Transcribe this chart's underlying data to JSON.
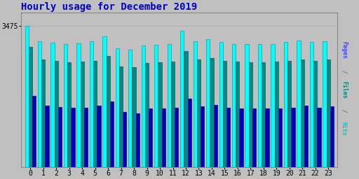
{
  "title": "Hourly usage for December 2019",
  "background_color": "#c0c0c0",
  "hours": [
    0,
    1,
    2,
    3,
    4,
    5,
    6,
    7,
    8,
    9,
    10,
    11,
    12,
    13,
    14,
    15,
    16,
    17,
    18,
    19,
    20,
    21,
    22,
    23
  ],
  "hits": [
    3475,
    3100,
    3060,
    3030,
    3050,
    3090,
    3210,
    2920,
    2880,
    2990,
    3010,
    3030,
    3350,
    3090,
    3140,
    3070,
    3030,
    3020,
    3020,
    3030,
    3070,
    3110,
    3070,
    3090
  ],
  "files": [
    2950,
    2650,
    2610,
    2580,
    2590,
    2620,
    2740,
    2480,
    2450,
    2560,
    2580,
    2600,
    2860,
    2640,
    2680,
    2620,
    2590,
    2580,
    2580,
    2590,
    2620,
    2650,
    2620,
    2640
  ],
  "pages": [
    1750,
    1520,
    1480,
    1460,
    1470,
    1510,
    1620,
    1360,
    1330,
    1440,
    1450,
    1470,
    1690,
    1500,
    1530,
    1470,
    1450,
    1440,
    1440,
    1450,
    1470,
    1510,
    1470,
    1490
  ],
  "hits_color": "#00ffff",
  "files_color": "#008b8b",
  "pages_color": "#0000bb",
  "title_color": "#0000cc",
  "title_fontsize": 10,
  "tick_fontsize": 7,
  "ymax": 3800,
  "ytick_val": 3475,
  "ylabel_right_pages": "#4444ff",
  "ylabel_right_files": "#008080",
  "ylabel_right_hits": "#00cccc"
}
